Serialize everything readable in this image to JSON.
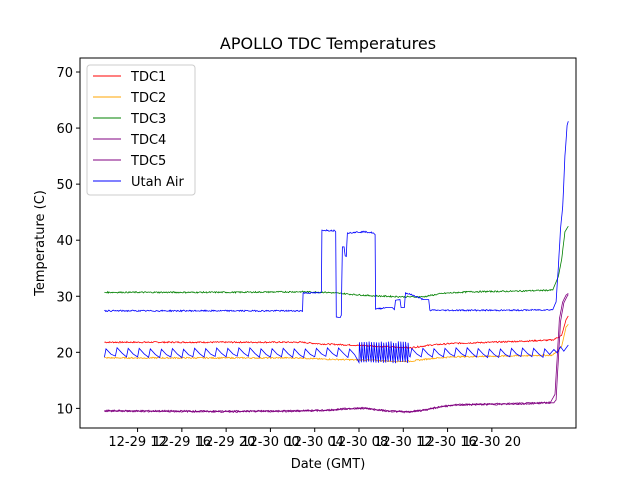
{
  "chart_data": {
    "type": "line",
    "title": "APOLLO TDC Temperatures",
    "xlabel": "Date (GMT)",
    "ylabel": "Temperature (C)",
    "ylim": [
      6.5,
      72.5
    ],
    "xlim_hours": [
      -5.2,
      39.6
    ],
    "yticks": [
      10,
      20,
      30,
      40,
      50,
      60,
      70
    ],
    "xtick_labels": [
      {
        "hour": 0,
        "label": "12-29 12"
      },
      {
        "hour": 4,
        "label": "12-29 16"
      },
      {
        "hour": 8,
        "label": "12-29 20"
      },
      {
        "hour": 12,
        "label": "12-30 00"
      },
      {
        "hour": 16,
        "label": "12-30 04"
      },
      {
        "hour": 20,
        "label": "12-30 08"
      },
      {
        "hour": 24,
        "label": "12-30 12"
      },
      {
        "hour": 28,
        "label": "12-30 16"
      },
      {
        "hour": 32,
        "label": "12-30 20"
      }
    ],
    "grid": false,
    "legend_position": "top-left",
    "series": [
      {
        "name": "TDC1",
        "color": "#ff0000",
        "points": [
          [
            -3.0,
            21.8
          ],
          [
            14.8,
            21.8
          ],
          [
            16.5,
            21.5
          ],
          [
            18.0,
            21.4
          ],
          [
            20.5,
            21.2
          ],
          [
            22.5,
            21.0
          ],
          [
            24.6,
            20.8
          ],
          [
            26.5,
            21.3
          ],
          [
            28.5,
            21.6
          ],
          [
            32.0,
            21.8
          ],
          [
            35.0,
            22.0
          ],
          [
            37.5,
            22.2
          ],
          [
            38.3,
            23.0
          ],
          [
            38.7,
            25.8
          ],
          [
            38.9,
            26.5
          ]
        ]
      },
      {
        "name": "TDC2",
        "color": "#ffa500",
        "points": [
          [
            -3.0,
            19.0
          ],
          [
            14.8,
            19.0
          ],
          [
            16.5,
            18.8
          ],
          [
            18.5,
            18.7
          ],
          [
            21.0,
            18.6
          ],
          [
            23.0,
            18.4
          ],
          [
            24.6,
            18.4
          ],
          [
            26.5,
            18.9
          ],
          [
            28.5,
            19.2
          ],
          [
            32.0,
            19.3
          ],
          [
            35.0,
            19.4
          ],
          [
            37.5,
            19.5
          ],
          [
            38.3,
            21.0
          ],
          [
            38.7,
            24.5
          ],
          [
            38.9,
            25.0
          ]
        ]
      },
      {
        "name": "TDC3",
        "color": "#008000",
        "points": [
          [
            -3.0,
            30.7
          ],
          [
            8.0,
            30.7
          ],
          [
            14.8,
            30.8
          ],
          [
            17.0,
            30.7
          ],
          [
            19.0,
            30.4
          ],
          [
            21.0,
            30.1
          ],
          [
            24.0,
            29.9
          ],
          [
            25.8,
            29.9
          ],
          [
            27.5,
            30.5
          ],
          [
            30.0,
            30.8
          ],
          [
            34.0,
            30.9
          ],
          [
            37.5,
            31.1
          ],
          [
            38.0,
            33.5
          ],
          [
            38.3,
            36.5
          ],
          [
            38.6,
            41.5
          ],
          [
            38.9,
            42.5
          ]
        ]
      },
      {
        "name": "TDC4",
        "color": "#800080",
        "points": [
          [
            -3.0,
            9.6
          ],
          [
            8.0,
            9.5
          ],
          [
            14.8,
            9.6
          ],
          [
            17.0,
            9.7
          ],
          [
            19.0,
            10.0
          ],
          [
            20.5,
            10.1
          ],
          [
            22.5,
            9.6
          ],
          [
            24.5,
            9.4
          ],
          [
            26.0,
            9.8
          ],
          [
            27.5,
            10.4
          ],
          [
            29.0,
            10.7
          ],
          [
            32.0,
            10.8
          ],
          [
            35.0,
            10.9
          ],
          [
            37.3,
            11.1
          ],
          [
            37.7,
            12.5
          ],
          [
            37.9,
            19.0
          ],
          [
            38.1,
            26.0
          ],
          [
            38.4,
            29.0
          ],
          [
            38.7,
            30.2
          ],
          [
            38.9,
            30.5
          ]
        ]
      },
      {
        "name": "TDC5",
        "color": "#800080",
        "points": [
          [
            -3.0,
            9.5
          ],
          [
            8.0,
            9.4
          ],
          [
            14.8,
            9.5
          ],
          [
            17.0,
            9.6
          ],
          [
            19.0,
            9.9
          ],
          [
            20.5,
            10.0
          ],
          [
            22.5,
            9.5
          ],
          [
            24.5,
            9.3
          ],
          [
            26.0,
            9.7
          ],
          [
            27.5,
            10.3
          ],
          [
            29.0,
            10.6
          ],
          [
            32.0,
            10.7
          ],
          [
            35.0,
            10.8
          ],
          [
            37.3,
            11.0
          ],
          [
            37.6,
            11.0
          ],
          [
            37.8,
            11.5
          ],
          [
            38.0,
            18.5
          ],
          [
            38.2,
            25.5
          ],
          [
            38.5,
            28.8
          ],
          [
            38.8,
            30.0
          ],
          [
            38.9,
            30.3
          ]
        ]
      },
      {
        "name": "Utah Air",
        "color": "#0000ff",
        "points": [
          [
            -3.0,
            27.4
          ],
          [
            14.8,
            27.4
          ],
          [
            14.9,
            27.3
          ],
          [
            14.95,
            30.6
          ],
          [
            16.5,
            30.6
          ],
          [
            16.6,
            30.8
          ],
          [
            16.65,
            41.8
          ],
          [
            17.8,
            41.7
          ],
          [
            17.9,
            41.5
          ],
          [
            17.95,
            26.3
          ],
          [
            18.3,
            26.2
          ],
          [
            18.4,
            26.6
          ],
          [
            18.5,
            38.8
          ],
          [
            18.65,
            38.8
          ],
          [
            18.75,
            37.2
          ],
          [
            18.85,
            37.1
          ],
          [
            18.95,
            41.3
          ],
          [
            19.5,
            41.4
          ],
          [
            20.5,
            41.5
          ],
          [
            21.3,
            41.3
          ],
          [
            21.45,
            41.0
          ],
          [
            21.5,
            27.7
          ],
          [
            22.5,
            28.0
          ],
          [
            23.0,
            28.0
          ],
          [
            23.2,
            27.6
          ],
          [
            23.3,
            29.3
          ],
          [
            23.7,
            29.4
          ],
          [
            23.8,
            28.0
          ],
          [
            24.1,
            28.0
          ],
          [
            24.2,
            30.6
          ],
          [
            25.0,
            30.1
          ],
          [
            25.8,
            29.4
          ],
          [
            26.3,
            29.4
          ],
          [
            26.4,
            27.5
          ],
          [
            30.0,
            27.5
          ],
          [
            34.0,
            27.5
          ],
          [
            37.5,
            27.6
          ],
          [
            37.8,
            29.0
          ],
          [
            38.0,
            35.0
          ],
          [
            38.2,
            42.0
          ],
          [
            38.4,
            46.0
          ],
          [
            38.6,
            55.0
          ],
          [
            38.8,
            60.5
          ],
          [
            38.9,
            61.2
          ]
        ]
      }
    ],
    "oscillation": {
      "series": "Utah Air",
      "period_hours": 1.0,
      "low": 19.2,
      "high": 20.7,
      "range_hours": [
        -3.0,
        37.6
      ],
      "fast_segment": {
        "range_hours": [
          20.0,
          24.6
        ],
        "period_hours": 0.22,
        "low": 18.2,
        "high": 21.8
      },
      "end_points": [
        [
          37.6,
          20.5
        ],
        [
          37.9,
          19.9
        ],
        [
          38.2,
          21.0
        ],
        [
          38.5,
          20.2
        ],
        [
          38.9,
          21.3
        ]
      ]
    }
  }
}
